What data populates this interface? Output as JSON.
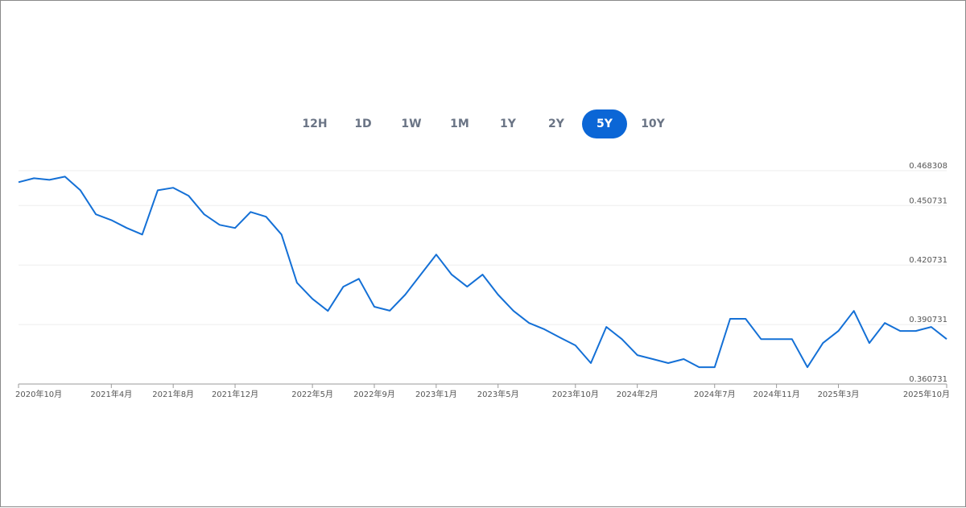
{
  "buttons": [
    "12H",
    "1D",
    "1W",
    "1M",
    "1Y",
    "2Y",
    "5Y",
    "10Y"
  ],
  "active_button": 6,
  "chart_data": {
    "type": "line",
    "x": [
      "2020-10",
      "2020-11",
      "2020-12",
      "2021-01",
      "2021-02",
      "2021-03",
      "2021-04",
      "2021-05",
      "2021-06",
      "2021-07",
      "2021-08",
      "2021-09",
      "2021-10",
      "2021-11",
      "2021-12",
      "2022-01",
      "2022-02",
      "2022-03",
      "2022-04",
      "2022-05",
      "2022-06",
      "2022-07",
      "2022-08",
      "2022-09",
      "2022-10",
      "2022-11",
      "2022-12",
      "2023-01",
      "2023-02",
      "2023-03",
      "2023-04",
      "2023-05",
      "2023-06",
      "2023-07",
      "2023-08",
      "2023-09",
      "2023-10",
      "2023-11",
      "2023-12",
      "2024-01",
      "2024-02",
      "2024-03",
      "2024-04",
      "2024-05",
      "2024-06",
      "2024-07",
      "2024-08",
      "2024-09",
      "2024-10",
      "2024-11",
      "2024-12",
      "2025-01",
      "2025-02",
      "2025-03",
      "2025-04",
      "2025-05",
      "2025-06",
      "2025-07",
      "2025-08",
      "2025-09",
      "2025-10"
    ],
    "series": [
      {
        "color": "#1470d6",
        "values": [
          0.4625,
          0.4645,
          0.4637,
          0.4653,
          0.4584,
          0.4463,
          0.4434,
          0.4394,
          0.4361,
          0.4584,
          0.4597,
          0.4556,
          0.4463,
          0.441,
          0.4394,
          0.4475,
          0.4451,
          0.4361,
          0.4118,
          0.4037,
          0.3976,
          0.4098,
          0.4138,
          0.3997,
          0.3977,
          0.4058,
          0.4159,
          0.426,
          0.4159,
          0.4098,
          0.4159,
          0.4058,
          0.3976,
          0.3915,
          0.3883,
          0.3842,
          0.3802,
          0.3713,
          0.3895,
          0.3834,
          0.3753,
          0.3733,
          0.3713,
          0.3733,
          0.3692,
          0.3692,
          0.3936,
          0.3936,
          0.3834,
          0.3834,
          0.3834,
          0.3692,
          0.3814,
          0.3875,
          0.3976,
          0.3814,
          0.3915,
          0.3875,
          0.3875,
          0.3895,
          0.3834
        ]
      }
    ],
    "xlim": [
      "2020-10",
      "2025-10"
    ],
    "xticks": [
      {
        "value": "2020-10",
        "label": "2020年10月"
      },
      {
        "value": "2021-04",
        "label": "2021年4月"
      },
      {
        "value": "2021-08",
        "label": "2021年8月"
      },
      {
        "value": "2021-12",
        "label": "2021年12月"
      },
      {
        "value": "2022-05",
        "label": "2022年5月"
      },
      {
        "value": "2022-09",
        "label": "2022年9月"
      },
      {
        "value": "2023-01",
        "label": "2023年1月"
      },
      {
        "value": "2023-05",
        "label": "2023年5月"
      },
      {
        "value": "2023-10",
        "label": "2023年10月"
      },
      {
        "value": "2024-02",
        "label": "2024年2月"
      },
      {
        "value": "2024-07",
        "label": "2024年7月"
      },
      {
        "value": "2024-11",
        "label": "2024年11月"
      },
      {
        "value": "2025-03",
        "label": "2025年3月"
      },
      {
        "value": "2025-10",
        "label": "2025年10月"
      }
    ],
    "ylim": [
      0.360731,
      0.468308
    ],
    "yticks": [
      0.360731,
      0.390731,
      0.420731,
      0.450731,
      0.468308
    ],
    "grid": true
  }
}
